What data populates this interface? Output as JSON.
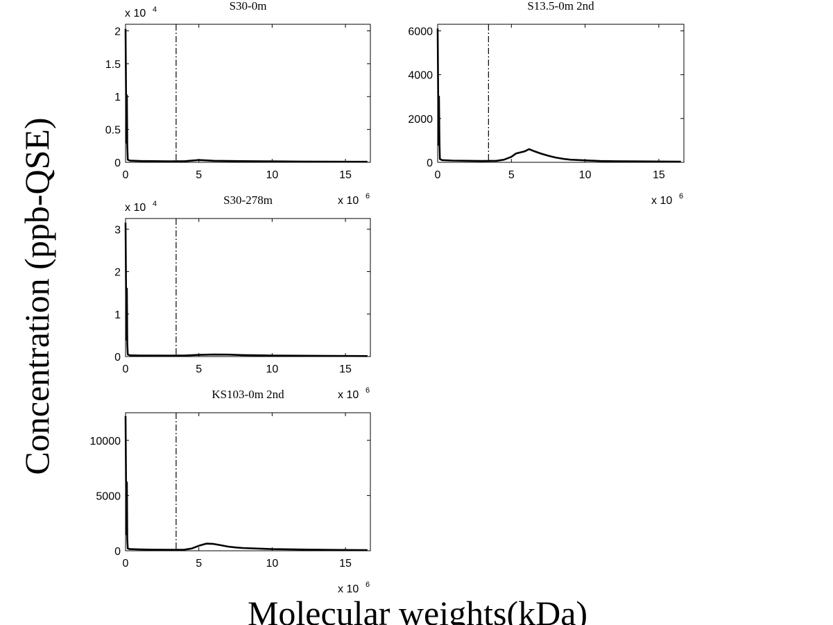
{
  "figure": {
    "ylabel": "Concentration (ppb-QSE)",
    "xlabel": "Molecular weights(kDa)"
  },
  "chart_data": [
    {
      "type": "line",
      "title": "S30-0m",
      "xlim": [
        0,
        16700000.0
      ],
      "ylim": [
        0,
        21000
      ],
      "x_multiplier": "x 10",
      "x_exponent": "6",
      "y_multiplier": "x 10",
      "y_exponent": "4",
      "xticks": [
        0,
        5000000,
        10000000,
        15000000
      ],
      "xtick_labels": [
        "0",
        "5",
        "10",
        "15"
      ],
      "yticks": [
        0,
        5000,
        10000,
        15000,
        20000
      ],
      "ytick_labels": [
        "0",
        "0.5",
        "1",
        "1.5",
        "2"
      ],
      "vline_x": 3450000,
      "series": [
        {
          "x": [
            0,
            60000,
            90000,
            120000,
            150000,
            300000,
            1000000,
            2000000,
            3000000,
            4000000,
            4500000,
            5000000,
            5500000,
            6000000,
            7000000,
            8000000,
            10000000,
            12000000,
            14000000,
            16500000
          ],
          "y": [
            20300,
            3000,
            10200,
            2500,
            400,
            250,
            200,
            180,
            160,
            170,
            250,
            350,
            300,
            230,
            200,
            180,
            150,
            120,
            100,
            80
          ]
        }
      ]
    },
    {
      "type": "line",
      "title": "S13.5-0m 2nd",
      "xlim": [
        0,
        16700000.0
      ],
      "ylim": [
        0,
        6300
      ],
      "x_multiplier": "x 10",
      "x_exponent": "6",
      "y_multiplier": "",
      "y_exponent": "",
      "xticks": [
        0,
        5000000,
        10000000,
        15000000
      ],
      "xtick_labels": [
        "0",
        "5",
        "10",
        "15"
      ],
      "yticks": [
        0,
        2000,
        4000,
        6000
      ],
      "ytick_labels": [
        "0",
        "2000",
        "4000",
        "6000"
      ],
      "vline_x": 3450000,
      "series": [
        {
          "x": [
            0,
            60000,
            90000,
            120000,
            150000,
            300000,
            1000000,
            2000000,
            3000000,
            4000000,
            4500000,
            5000000,
            5300000,
            5600000,
            5900000,
            6200000,
            6500000,
            7000000,
            7500000,
            8000000,
            8500000,
            9000000,
            10000000,
            11000000,
            12000000,
            14000000,
            16500000
          ],
          "y": [
            6100,
            800,
            3000,
            900,
            150,
            100,
            80,
            70,
            60,
            70,
            120,
            250,
            400,
            450,
            500,
            600,
            520,
            400,
            300,
            220,
            160,
            120,
            90,
            60,
            50,
            40,
            30
          ]
        }
      ]
    },
    {
      "type": "line",
      "title": "S30-278m",
      "xlim": [
        0,
        16700000.0
      ],
      "ylim": [
        0,
        32500
      ],
      "x_multiplier": "x 10",
      "x_exponent": "6",
      "y_multiplier": "x 10",
      "y_exponent": "4",
      "xticks": [
        0,
        5000000,
        10000000,
        15000000
      ],
      "xtick_labels": [
        "0",
        "5",
        "10",
        "15"
      ],
      "yticks": [
        0,
        10000,
        20000,
        30000
      ],
      "ytick_labels": [
        "0",
        "1",
        "2",
        "3"
      ],
      "vline_x": 3450000,
      "series": [
        {
          "x": [
            0,
            60000,
            90000,
            120000,
            150000,
            300000,
            1000000,
            2000000,
            3000000,
            4000000,
            5000000,
            6000000,
            7000000,
            8000000,
            10000000,
            12000000,
            14000000,
            16500000
          ],
          "y": [
            31500,
            4000,
            16000,
            3000,
            500,
            300,
            250,
            230,
            210,
            250,
            400,
            480,
            450,
            350,
            250,
            200,
            150,
            120
          ]
        }
      ]
    },
    {
      "type": "line",
      "title": "KS103-0m 2nd",
      "xlim": [
        0,
        16700000.0
      ],
      "ylim": [
        0,
        12500
      ],
      "x_multiplier": "x 10",
      "x_exponent": "6",
      "y_multiplier": "",
      "y_exponent": "",
      "xticks": [
        0,
        5000000,
        10000000,
        15000000
      ],
      "xtick_labels": [
        "0",
        "5",
        "10",
        "15"
      ],
      "yticks": [
        0,
        5000,
        10000
      ],
      "ytick_labels": [
        "0",
        "5000",
        "10000"
      ],
      "vline_x": 3450000,
      "series": [
        {
          "x": [
            0,
            60000,
            90000,
            120000,
            150000,
            300000,
            1000000,
            2000000,
            3000000,
            4000000,
            4500000,
            5000000,
            5500000,
            6000000,
            6500000,
            7000000,
            7500000,
            8000000,
            9000000,
            10000000,
            12000000,
            14000000,
            16500000
          ],
          "y": [
            12200,
            1500,
            6200,
            1000,
            200,
            150,
            120,
            100,
            90,
            100,
            200,
            450,
            650,
            620,
            500,
            380,
            300,
            250,
            200,
            150,
            110,
            80,
            60
          ]
        }
      ]
    }
  ]
}
